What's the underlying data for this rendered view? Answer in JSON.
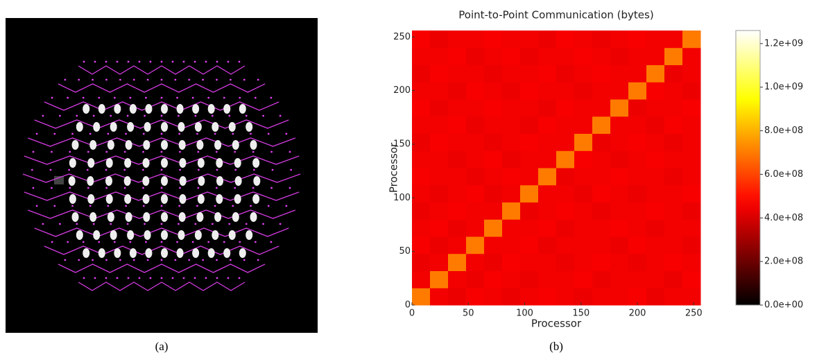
{
  "captions": [
    "(a)",
    "(b)"
  ],
  "chart_data": {
    "type": "heatmap",
    "title": "Point-to-Point Communication (bytes)",
    "xlabel": "Processor",
    "ylabel": "Processor",
    "colormap": "hot",
    "xlim": [
      0,
      256
    ],
    "ylim": [
      0,
      256
    ],
    "xticks": [
      0,
      50,
      100,
      150,
      200,
      250
    ],
    "yticks": [
      0,
      50,
      100,
      150,
      200,
      250
    ],
    "clim": [
      0,
      1260000000
    ],
    "cticks": [
      {
        "value": 0,
        "label": "0.0e+00"
      },
      {
        "value": 200000000,
        "label": "2.0e+08"
      },
      {
        "value": 400000000,
        "label": "4.0e+08"
      },
      {
        "value": 600000000,
        "label": "6.0e+08"
      },
      {
        "value": 800000000,
        "label": "8.0e+08"
      },
      {
        "value": 1000000000,
        "label": "1.0e+09"
      },
      {
        "value": 1200000000,
        "label": "1.2e+09"
      }
    ],
    "values": [
      [
        700000000,
        450000000,
        440000000,
        460000000,
        450000000,
        440000000,
        450000000,
        460000000,
        450000000,
        440000000,
        450000000,
        450000000,
        460000000,
        440000000,
        450000000,
        450000000
      ],
      [
        450000000,
        700000000,
        450000000,
        440000000,
        460000000,
        450000000,
        440000000,
        450000000,
        450000000,
        460000000,
        440000000,
        450000000,
        450000000,
        450000000,
        440000000,
        460000000
      ],
      [
        440000000,
        450000000,
        700000000,
        450000000,
        440000000,
        460000000,
        450000000,
        450000000,
        440000000,
        450000000,
        460000000,
        450000000,
        440000000,
        450000000,
        460000000,
        450000000
      ],
      [
        460000000,
        440000000,
        450000000,
        700000000,
        450000000,
        450000000,
        460000000,
        440000000,
        450000000,
        450000000,
        450000000,
        440000000,
        460000000,
        450000000,
        450000000,
        440000000
      ],
      [
        450000000,
        460000000,
        440000000,
        450000000,
        700000000,
        450000000,
        450000000,
        460000000,
        440000000,
        450000000,
        450000000,
        460000000,
        450000000,
        440000000,
        450000000,
        450000000
      ],
      [
        440000000,
        450000000,
        460000000,
        450000000,
        450000000,
        700000000,
        440000000,
        450000000,
        460000000,
        450000000,
        440000000,
        450000000,
        450000000,
        460000000,
        450000000,
        440000000
      ],
      [
        450000000,
        440000000,
        450000000,
        460000000,
        440000000,
        450000000,
        700000000,
        450000000,
        450000000,
        440000000,
        460000000,
        450000000,
        440000000,
        450000000,
        450000000,
        460000000
      ],
      [
        460000000,
        450000000,
        450000000,
        440000000,
        450000000,
        460000000,
        450000000,
        700000000,
        440000000,
        450000000,
        450000000,
        460000000,
        450000000,
        450000000,
        440000000,
        450000000
      ],
      [
        450000000,
        450000000,
        440000000,
        450000000,
        460000000,
        440000000,
        450000000,
        450000000,
        700000000,
        460000000,
        450000000,
        440000000,
        450000000,
        460000000,
        450000000,
        450000000
      ],
      [
        440000000,
        460000000,
        450000000,
        450000000,
        440000000,
        450000000,
        460000000,
        450000000,
        450000000,
        700000000,
        440000000,
        450000000,
        460000000,
        450000000,
        440000000,
        450000000
      ],
      [
        450000000,
        450000000,
        460000000,
        440000000,
        450000000,
        450000000,
        440000000,
        460000000,
        450000000,
        450000000,
        700000000,
        450000000,
        450000000,
        440000000,
        460000000,
        450000000
      ],
      [
        460000000,
        440000000,
        450000000,
        450000000,
        460000000,
        450000000,
        450000000,
        440000000,
        460000000,
        450000000,
        450000000,
        700000000,
        440000000,
        450000000,
        450000000,
        460000000
      ],
      [
        450000000,
        450000000,
        440000000,
        460000000,
        450000000,
        440000000,
        460000000,
        450000000,
        450000000,
        440000000,
        450000000,
        450000000,
        700000000,
        460000000,
        450000000,
        440000000
      ],
      [
        440000000,
        460000000,
        450000000,
        450000000,
        440000000,
        450000000,
        450000000,
        460000000,
        440000000,
        450000000,
        460000000,
        450000000,
        450000000,
        700000000,
        440000000,
        450000000
      ],
      [
        450000000,
        450000000,
        460000000,
        440000000,
        450000000,
        460000000,
        440000000,
        450000000,
        450000000,
        460000000,
        450000000,
        440000000,
        450000000,
        450000000,
        700000000,
        450000000
      ],
      [
        460000000,
        440000000,
        450000000,
        450000000,
        460000000,
        450000000,
        450000000,
        440000000,
        460000000,
        450000000,
        440000000,
        450000000,
        460000000,
        450000000,
        450000000,
        700000000
      ]
    ]
  }
}
